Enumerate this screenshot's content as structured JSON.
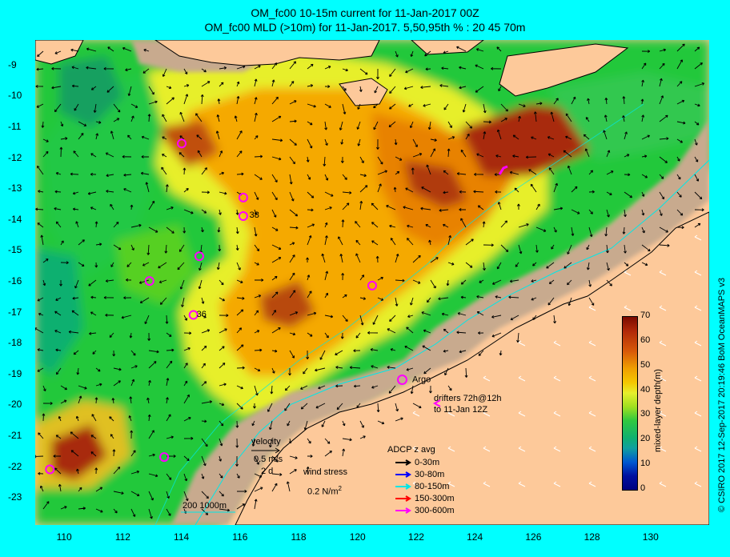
{
  "titles": {
    "line1": "OM_fc00 10-15m current for 11-Jan-2017 00Z",
    "line2": "OM_fc00 MLD (>10m) for 11-Jan-2017. 5,50,95th % : 20  45  70m"
  },
  "axes": {
    "lat_ticks": [
      "-9",
      "-10",
      "-11",
      "-12",
      "-13",
      "-14",
      "-15",
      "-16",
      "-17",
      "-18",
      "-19",
      "-20",
      "-21",
      "-22",
      "-23"
    ],
    "lon_ticks": [
      "110",
      "112",
      "114",
      "116",
      "118",
      "120",
      "122",
      "124",
      "126",
      "128",
      "130"
    ],
    "lon_range": [
      109,
      132
    ],
    "lat_range": [
      -23.9,
      -8.2
    ]
  },
  "colorbar": {
    "label": "mixed-layer depth(m)",
    "ticks": [
      "70",
      "60",
      "50",
      "40",
      "30",
      "20",
      "10",
      "0"
    ],
    "min": 0,
    "max": 70
  },
  "legend": {
    "argo_label": "Argo",
    "drifters_line1": "drifters 72h@12h",
    "drifters_line2": "to 11-Jan 12Z",
    "velocity_title": "velocity",
    "velocity_scale": "0.5 m/s",
    "velocity_time": "2 d",
    "wind_title": "wind stress",
    "wind_scale": "0.2 N/m",
    "wind_sup": "2",
    "adcp_title": "ADCP z avg",
    "adcp": [
      {
        "label": "0-30m",
        "color": "#000000"
      },
      {
        "label": "30-80m",
        "color": "#0000ff"
      },
      {
        "label": "80-150m",
        "color": "#00e5e5"
      },
      {
        "label": "150-300m",
        "color": "#ff0000"
      },
      {
        "label": "300-600m",
        "color": "#ff00ff"
      }
    ],
    "bathy": "200  1000m"
  },
  "argo_labels": [
    {
      "text": "38",
      "lon": 116.2,
      "lat": -13.9
    },
    {
      "text": "36",
      "lon": 114.4,
      "lat": -17.1
    }
  ],
  "argo_floats": [
    {
      "lon": 114.0,
      "lat": -11.55
    },
    {
      "lon": 116.1,
      "lat": -13.3
    },
    {
      "lon": 116.1,
      "lat": -13.9
    },
    {
      "lon": 114.6,
      "lat": -15.2
    },
    {
      "lon": 112.9,
      "lat": -16.0
    },
    {
      "lon": 114.4,
      "lat": -17.1
    },
    {
      "lon": 120.5,
      "lat": -16.15
    },
    {
      "lon": 109.5,
      "lat": -22.1
    },
    {
      "lon": 113.4,
      "lat": -21.7
    }
  ],
  "copyright": "© CSIRO 2017   12-Sep-2017 20:19:46 BoM OceanMAPS v3",
  "colors": {
    "background": "#00ffff",
    "land": "#fdc99a",
    "shelf": "#c8aa8e"
  }
}
